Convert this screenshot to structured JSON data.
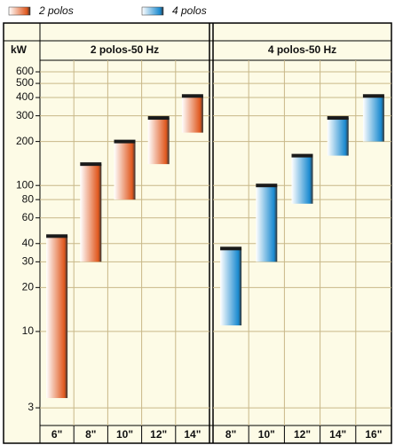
{
  "chart_data": {
    "type": "range-bar",
    "ylabel": "kW",
    "yscale": "log",
    "grid": true,
    "ylim": [
      2.8,
      700
    ],
    "yticks": [
      3,
      10,
      20,
      30,
      40,
      60,
      80,
      100,
      200,
      300,
      400,
      500,
      600
    ],
    "series": [
      {
        "name": "2 polos",
        "color": "#e0581e",
        "title": "2 polos-50 Hz",
        "categories": [
          "6\"",
          "8\"",
          "10\"",
          "12\"",
          "14\""
        ],
        "values": [
          [
            3.5,
            45
          ],
          [
            30,
            140
          ],
          [
            80,
            200
          ],
          [
            140,
            290
          ],
          [
            230,
            410
          ]
        ]
      },
      {
        "name": "4 polos",
        "color": "#1a8ad0",
        "title": "4 polos-50 Hz",
        "categories": [
          "8\"",
          "10\"",
          "12\"",
          "14\"",
          "16\""
        ],
        "values": [
          [
            11,
            37
          ],
          [
            30,
            100
          ],
          [
            75,
            160
          ],
          [
            160,
            290
          ],
          [
            200,
            410
          ]
        ]
      }
    ]
  }
}
